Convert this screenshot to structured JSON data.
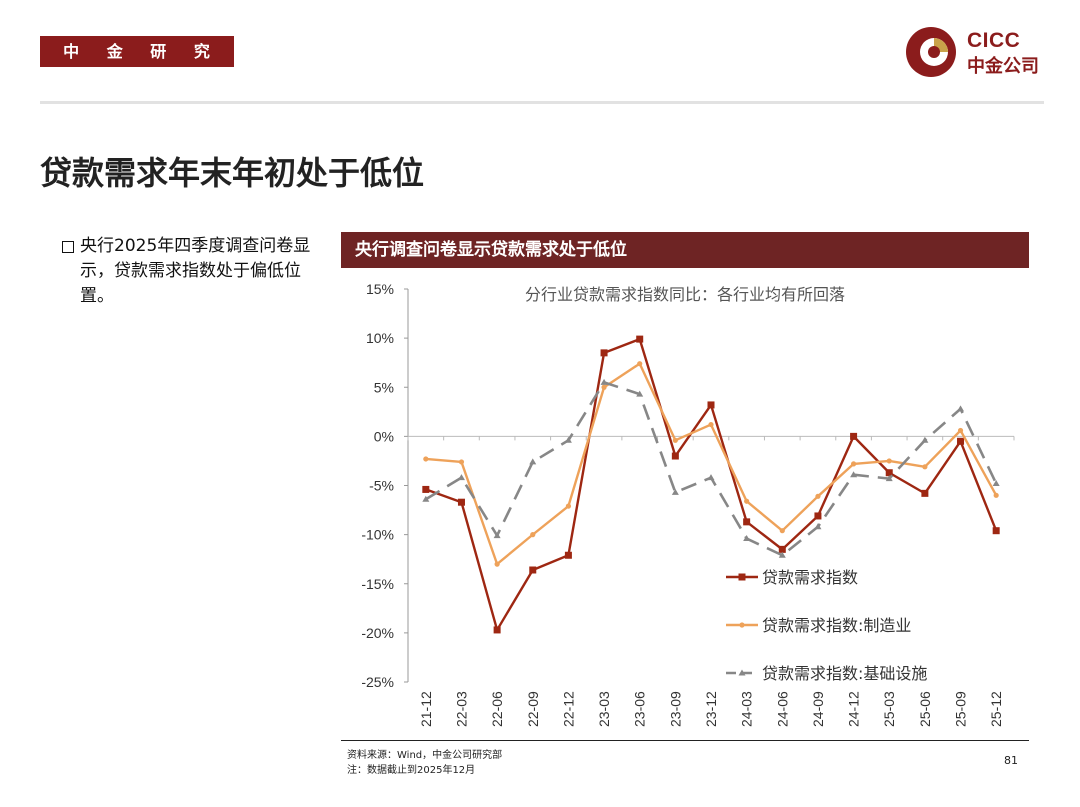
{
  "header": {
    "dept_label": "中 金 研 究 部",
    "logo_en": "CICC",
    "logo_cn": "中金公司"
  },
  "page_title": "贷款需求年末年初处于低位",
  "bullet_text": "央行2025年四季度调查问卷显示，贷款需求指数处于偏低位置。",
  "chart_header": "央行调查问卷显示贷款需求处于低位",
  "colors": {
    "brand": "#8b1c1c",
    "header_bar": "#6e2424",
    "series_total": "#9e2712",
    "series_manufacturing": "#eea25a",
    "series_infra": "#878787"
  },
  "chart_data": {
    "type": "line",
    "title": "分行业贷款需求指数同比：各行业均有所回落",
    "xlabel": "",
    "ylabel": "",
    "categories": [
      "21-12",
      "22-03",
      "22-06",
      "22-09",
      "22-12",
      "23-03",
      "23-06",
      "23-09",
      "23-12",
      "24-03",
      "24-06",
      "24-09",
      "24-12",
      "25-03",
      "25-06",
      "25-09",
      "25-12"
    ],
    "ylim": [
      -25,
      15
    ],
    "yticks": [
      15,
      10,
      5,
      0,
      -5,
      -10,
      -15,
      -20,
      -25
    ],
    "ytick_labels": [
      "15%",
      "10%",
      "5%",
      "0%",
      "-5%",
      "-10%",
      "-15%",
      "-20%",
      "-25%"
    ],
    "grid": false,
    "legend_position": "bottom-right",
    "series": [
      {
        "name": "贷款需求指数",
        "style": "solid-square",
        "values": [
          -5.4,
          -6.7,
          -19.7,
          -13.6,
          -12.1,
          8.5,
          9.9,
          -2.0,
          3.2,
          -8.7,
          -11.5,
          -8.1,
          0.0,
          -3.7,
          -5.8,
          -0.5,
          -9.6
        ]
      },
      {
        "name": "贷款需求指数:制造业",
        "style": "solid-dot",
        "values": [
          -2.3,
          -2.6,
          -13.0,
          -10.0,
          -7.1,
          5.0,
          7.4,
          -0.4,
          1.2,
          -6.6,
          -9.6,
          -6.1,
          -2.8,
          -2.5,
          -3.1,
          0.6,
          -6.0
        ]
      },
      {
        "name": "贷款需求指数:基础设施",
        "style": "dashed-triangle",
        "values": [
          -6.4,
          -4.2,
          -10.1,
          -2.6,
          -0.4,
          5.5,
          4.3,
          -5.7,
          -4.2,
          -10.4,
          -12.1,
          -9.2,
          -3.9,
          -4.3,
          -0.4,
          2.8,
          -4.8
        ]
      }
    ]
  },
  "footer": {
    "source": "资料来源：Wind，中金公司研究部",
    "note": "注：数据截止到2025年12月",
    "page_number": "81"
  }
}
